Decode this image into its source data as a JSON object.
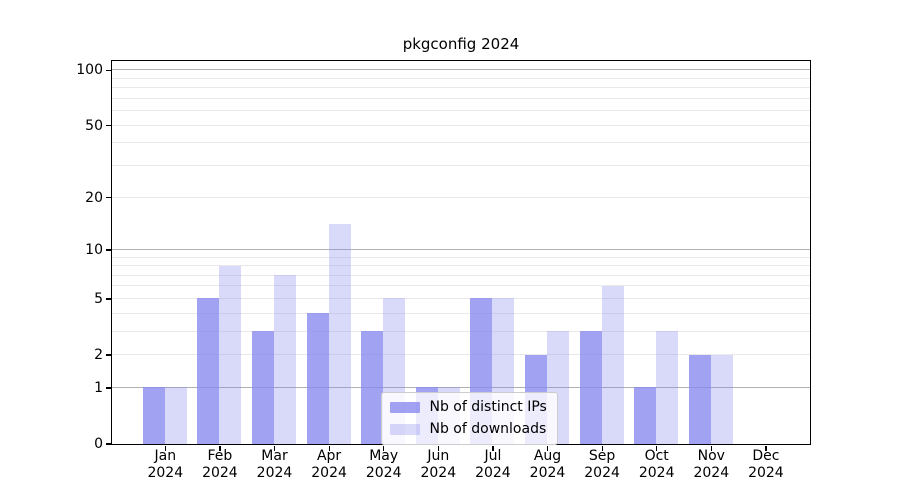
{
  "title": "pkgconfig 2024",
  "chart_data": {
    "type": "bar",
    "title": "pkgconfig 2024",
    "categories": [
      "Jan",
      "Feb",
      "Mar",
      "Apr",
      "May",
      "Jun",
      "Jul",
      "Aug",
      "Sep",
      "Oct",
      "Nov",
      "Dec"
    ],
    "category_year": "2024",
    "series": [
      {
        "name": "Nb of distinct IPs",
        "values": [
          1,
          5,
          3,
          4,
          3,
          1,
          5,
          2,
          3,
          1,
          2,
          0
        ],
        "color": "rgba(136,136,238,0.78)"
      },
      {
        "name": "Nb of downloads",
        "values": [
          1,
          8,
          7,
          14,
          5,
          1,
          5,
          3,
          6,
          3,
          2,
          0
        ],
        "color": "rgba(136,136,238,0.32)"
      }
    ],
    "xlabel": "",
    "ylabel": "",
    "y_scale": "log1p",
    "ylim": [
      0,
      112
    ],
    "y_ticks": [
      0,
      1,
      2,
      5,
      10,
      20,
      50,
      100
    ],
    "gridlines_major": [
      1,
      10,
      100
    ],
    "gridlines_minor": [
      2,
      3,
      4,
      5,
      6,
      7,
      8,
      9,
      20,
      30,
      40,
      50,
      60,
      70,
      80,
      90
    ],
    "legend_position": "lower-center-inside",
    "colors": {
      "grid_major": "#b0b0b0",
      "grid_minor": "#e9e9e9",
      "axis": "#000000",
      "text": "#000000"
    }
  }
}
